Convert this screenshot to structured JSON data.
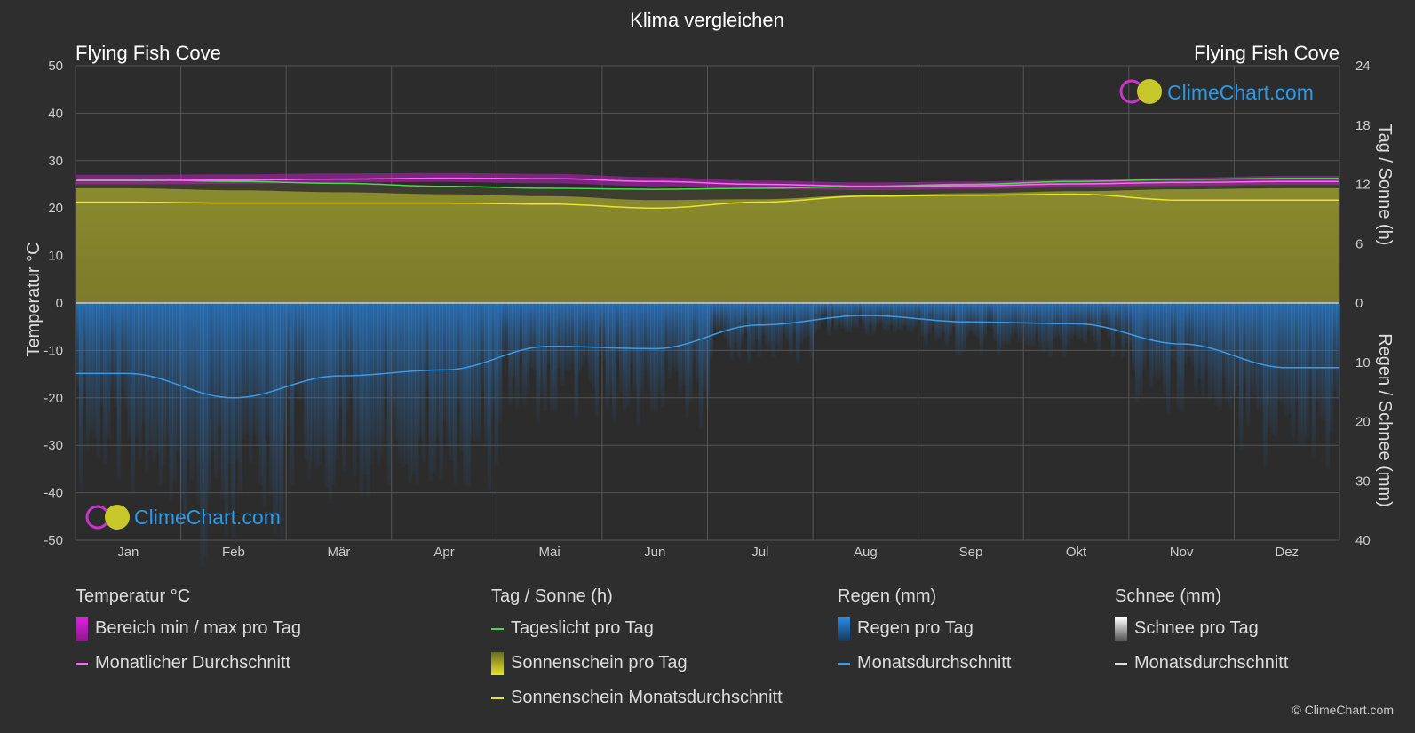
{
  "title": "Klima vergleichen",
  "location_left": "Flying Fish Cove",
  "location_right": "Flying Fish Cove",
  "logo_text": "ClimeChart.com",
  "copyright": "© ClimeChart.com",
  "axes": {
    "left_label": "Temperatur °C",
    "right_top_label": "Tag / Sonne (h)",
    "right_bottom_label": "Regen / Schnee (mm)",
    "left_ticks": [
      50,
      40,
      30,
      20,
      10,
      0,
      -10,
      -20,
      -30,
      -40,
      -50
    ],
    "right_top_ticks": [
      24,
      18,
      12,
      6,
      0
    ],
    "right_bottom_ticks": [
      10,
      20,
      30,
      40
    ]
  },
  "legend": {
    "temperature": {
      "title": "Temperatur °C",
      "range": "Bereich min / max pro Tag",
      "avg": "Monatlicher Durchschnitt"
    },
    "sun": {
      "title": "Tag / Sonne (h)",
      "daylight": "Tageslicht pro Tag",
      "sunshine": "Sonnenschein pro Tag",
      "sunshine_avg": "Sonnenschein Monatsdurchschnitt"
    },
    "rain": {
      "title": "Regen (mm)",
      "per_day": "Regen pro Tag",
      "avg": "Monatsdurchschnitt"
    },
    "snow": {
      "title": "Schnee (mm)",
      "per_day": "Schnee pro Tag",
      "avg": "Monatsdurchschnitt"
    }
  },
  "colors": {
    "background": "#2e2e2e",
    "temp_range": "#e020e0",
    "temp_avg": "#ff66ff",
    "daylight": "#44dd44",
    "sunshine": "#a8a830",
    "sunshine_avg": "#e6e62a",
    "rain": "#2a7fd4",
    "rain_avg": "#3a9ae8",
    "snow": "#dddddd",
    "logo_text": "#2a9ae8"
  },
  "chart_data": {
    "type": "area",
    "categories": [
      "Jan",
      "Feb",
      "Mär",
      "Apr",
      "Mai",
      "Jun",
      "Jul",
      "Aug",
      "Sep",
      "Okt",
      "Nov",
      "Dez"
    ],
    "temperature_ylim": [
      -50,
      50
    ],
    "sun_hours_ylim": [
      0,
      24
    ],
    "precip_mm_ylim": [
      0,
      40
    ],
    "series": [
      {
        "name": "Bereich min / max pro Tag (max)",
        "axis": "temperature",
        "values": [
          27.0,
          27.1,
          27.3,
          27.4,
          27.2,
          26.5,
          25.8,
          25.4,
          25.6,
          26.0,
          26.4,
          26.8
        ]
      },
      {
        "name": "Bereich min / max pro Tag (min)",
        "axis": "temperature",
        "values": [
          25.0,
          25.1,
          25.4,
          25.5,
          25.2,
          24.6,
          24.0,
          23.8,
          24.0,
          24.4,
          24.7,
          24.9
        ]
      },
      {
        "name": "Monatlicher Durchschnitt",
        "axis": "temperature",
        "values": [
          25.8,
          25.9,
          26.1,
          26.3,
          26.2,
          25.6,
          25.0,
          24.6,
          24.7,
          25.1,
          25.4,
          25.6
        ]
      },
      {
        "name": "Tageslicht pro Tag",
        "axis": "sun",
        "values": [
          12.5,
          12.3,
          12.1,
          11.8,
          11.6,
          11.5,
          11.6,
          11.8,
          12.0,
          12.3,
          12.5,
          12.6
        ]
      },
      {
        "name": "Sonnenschein pro Tag",
        "axis": "sun",
        "values": [
          11.6,
          11.4,
          11.2,
          11.0,
          10.8,
          10.4,
          10.5,
          10.9,
          11.1,
          11.3,
          11.5,
          11.6
        ]
      },
      {
        "name": "Sonnenschein Monatsdurchschnitt",
        "axis": "sun",
        "values": [
          10.2,
          10.1,
          10.1,
          10.1,
          10.0,
          9.6,
          10.2,
          10.8,
          10.9,
          11.0,
          10.4,
          10.4
        ]
      },
      {
        "name": "Regen Monatsdurchschnitt",
        "axis": "precip",
        "values": [
          11.9,
          16.0,
          12.3,
          11.3,
          7.3,
          7.7,
          3.7,
          2.1,
          3.2,
          3.5,
          6.9,
          10.9
        ]
      }
    ]
  }
}
